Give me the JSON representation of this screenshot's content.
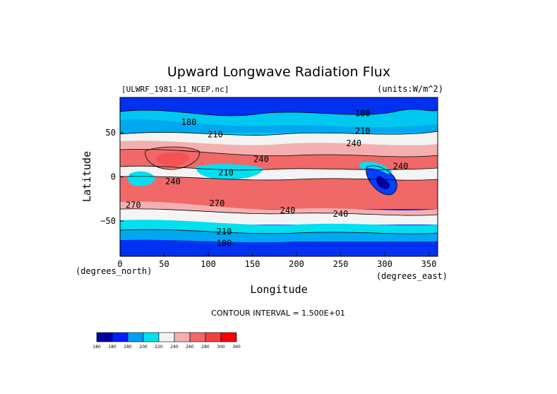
{
  "chart_data": {
    "type": "heatmap",
    "title": "Upward Longwave Radiation Flux",
    "file_label": "[ULWRF_1981-11_NCEP.nc]",
    "units_label": "(units:W/m^2)",
    "xlabel": "Longitude",
    "ylabel": "Latitude",
    "x_unit_label": "(degrees_east)",
    "y_unit_label": "(degrees_north)",
    "xlim": [
      0,
      360
    ],
    "ylim": [
      -90,
      90
    ],
    "x_ticks": [
      0,
      50,
      100,
      150,
      200,
      250,
      300,
      350
    ],
    "y_ticks": [
      50,
      0,
      -50
    ],
    "contour_interval_text": "CONTOUR INTERVAL = 1.500E+01",
    "contour_labels": [
      {
        "text": "180",
        "lon": 78,
        "lat": 62
      },
      {
        "text": "210",
        "lon": 108,
        "lat": 48
      },
      {
        "text": "240",
        "lon": 265,
        "lat": 38
      },
      {
        "text": "210",
        "lon": 275,
        "lat": 52
      },
      {
        "text": "240",
        "lon": 160,
        "lat": 20
      },
      {
        "text": "210",
        "lon": 120,
        "lat": 5
      },
      {
        "text": "240",
        "lon": 60,
        "lat": -5
      },
      {
        "text": "240",
        "lon": 318,
        "lat": 12
      },
      {
        "text": "270",
        "lon": 15,
        "lat": -32
      },
      {
        "text": "270",
        "lon": 110,
        "lat": -30
      },
      {
        "text": "240",
        "lon": 190,
        "lat": -38
      },
      {
        "text": "240",
        "lon": 250,
        "lat": -42
      },
      {
        "text": "210",
        "lon": 118,
        "lat": -62
      },
      {
        "text": "180",
        "lon": 118,
        "lat": -75
      },
      {
        "text": "180",
        "lon": 275,
        "lat": 72
      }
    ],
    "colorbar": {
      "levels": [
        "180",
        "180",
        "180",
        "200",
        "220",
        "240",
        "260",
        "280",
        "300",
        "360"
      ],
      "colors": [
        "#0000a0",
        "#0020ff",
        "#00a0f0",
        "#00e0f0",
        "#f4f4f4",
        "#f4b0b0",
        "#f06868",
        "#f04040",
        "#ff0000"
      ]
    }
  }
}
